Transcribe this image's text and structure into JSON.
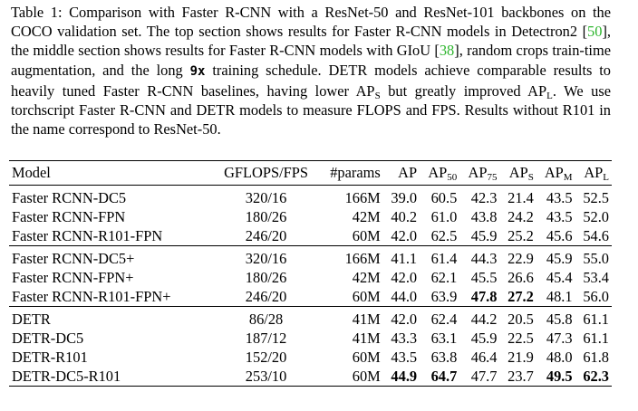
{
  "caption": {
    "parts": [
      {
        "text": "Table 1: Comparison with Faster R-CNN with a ResNet-50 and ResNet-101 backbones on the COCO validation set. The top section shows results for Faster R-CNN models in Detectron2 ["
      },
      {
        "text": "50",
        "style": "cite"
      },
      {
        "text": "], the middle section shows results for Faster R-CNN models with GIoU ["
      },
      {
        "text": "38",
        "style": "cite"
      },
      {
        "text": "], random crops train-time augmentation, and the long "
      },
      {
        "text": "9x",
        "style": "code"
      },
      {
        "text": " training schedule. DETR models achieve comparable results to heavily tuned Faster R-CNN baselines, having lower AP"
      },
      {
        "text": "S",
        "style": "sub"
      },
      {
        "text": " but greatly improved AP"
      },
      {
        "text": "L",
        "style": "sub"
      },
      {
        "text": ". We use torchscript Faster R-CNN and DETR models to measure FLOPS and FPS. Results without R101 in the name correspond to ResNet-50."
      }
    ]
  },
  "table": {
    "header": [
      {
        "text": "Model"
      },
      {
        "text": "GFLOPS/FPS"
      },
      {
        "text": "#params"
      },
      {
        "text": "AP"
      },
      {
        "text": "AP",
        "sub": "50"
      },
      {
        "text": "AP",
        "sub": "75"
      },
      {
        "text": "AP",
        "sub": "S"
      },
      {
        "text": "AP",
        "sub": "M"
      },
      {
        "text": "AP",
        "sub": "L"
      }
    ],
    "sections": [
      [
        [
          "Faster RCNN-DC5",
          "320/16",
          "166M",
          "39.0",
          "60.5",
          "42.3",
          "21.4",
          "43.5",
          "52.5"
        ],
        [
          "Faster RCNN-FPN",
          "180/26",
          "42M",
          "40.2",
          "61.0",
          "43.8",
          "24.2",
          "43.5",
          "52.0"
        ],
        [
          "Faster RCNN-R101-FPN",
          "246/20",
          "60M",
          "42.0",
          "62.5",
          "45.9",
          "25.2",
          "45.6",
          "54.6"
        ]
      ],
      [
        [
          "Faster RCNN-DC5+",
          "320/16",
          "166M",
          "41.1",
          "61.4",
          "44.3",
          "22.9",
          "45.9",
          "55.0"
        ],
        [
          "Faster RCNN-FPN+",
          "180/26",
          "42M",
          "42.0",
          "62.1",
          "45.5",
          "26.6",
          "45.4",
          "53.4"
        ],
        [
          "Faster RCNN-R101-FPN+",
          "246/20",
          "60M",
          "44.0",
          "63.9",
          {
            "text": "47.8",
            "bold": true
          },
          {
            "text": "27.2",
            "bold": true
          },
          "48.1",
          "56.0"
        ]
      ],
      [
        [
          "DETR",
          "86/28",
          "41M",
          "42.0",
          "62.4",
          "44.2",
          "20.5",
          "45.8",
          "61.1"
        ],
        [
          "DETR-DC5",
          "187/12",
          "41M",
          "43.3",
          "63.1",
          "45.9",
          "22.5",
          "47.3",
          "61.1"
        ],
        [
          "DETR-R101",
          "152/20",
          "60M",
          "43.5",
          "63.8",
          "46.4",
          "21.9",
          "48.0",
          "61.8"
        ],
        [
          "DETR-DC5-R101",
          "253/10",
          "60M",
          {
            "text": "44.9",
            "bold": true
          },
          {
            "text": "64.7",
            "bold": true
          },
          "47.7",
          "23.7",
          {
            "text": "49.5",
            "bold": true
          },
          {
            "text": "62.3",
            "bold": true
          }
        ]
      ]
    ]
  }
}
